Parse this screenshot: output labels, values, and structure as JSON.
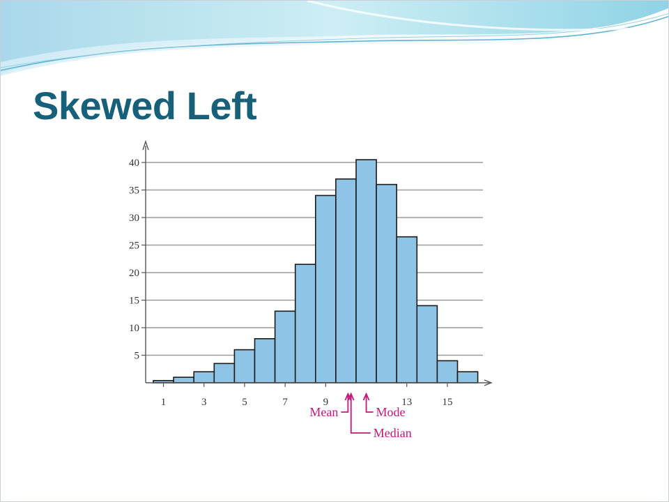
{
  "slide": {
    "title": "Skewed Left"
  },
  "colors": {
    "title": "#17607a",
    "bar_fill": "#8ec5e6",
    "bar_stroke": "#1a1a1a",
    "annotation": "#c2187a",
    "grid": "#9a9a9a",
    "banner": "#bfe6f0"
  },
  "chart_data": {
    "type": "bar",
    "title": "",
    "xlabel": "",
    "ylabel": "",
    "x_ticks": [
      "1",
      "3",
      "5",
      "7",
      "9",
      "13",
      "15"
    ],
    "y_ticks": [
      "5",
      "10",
      "15",
      "20",
      "25",
      "30",
      "35",
      "40"
    ],
    "ylim": [
      0,
      42
    ],
    "xlim": [
      0.5,
      16.5
    ],
    "grid": true,
    "series": [
      {
        "x": [
          1,
          2,
          3,
          4,
          5,
          6,
          7,
          8,
          9,
          10,
          11,
          12,
          13,
          14,
          15,
          16
        ],
        "values": [
          0.4,
          1,
          2,
          3.5,
          6,
          8,
          13,
          21.5,
          34,
          37,
          40.5,
          36,
          26.5,
          14,
          4,
          2
        ]
      }
    ],
    "annotations": [
      {
        "label": "Mean",
        "x": 10.1
      },
      {
        "label": "Median",
        "x": 10.25
      },
      {
        "label": "Mode",
        "x": 11.0
      }
    ]
  }
}
